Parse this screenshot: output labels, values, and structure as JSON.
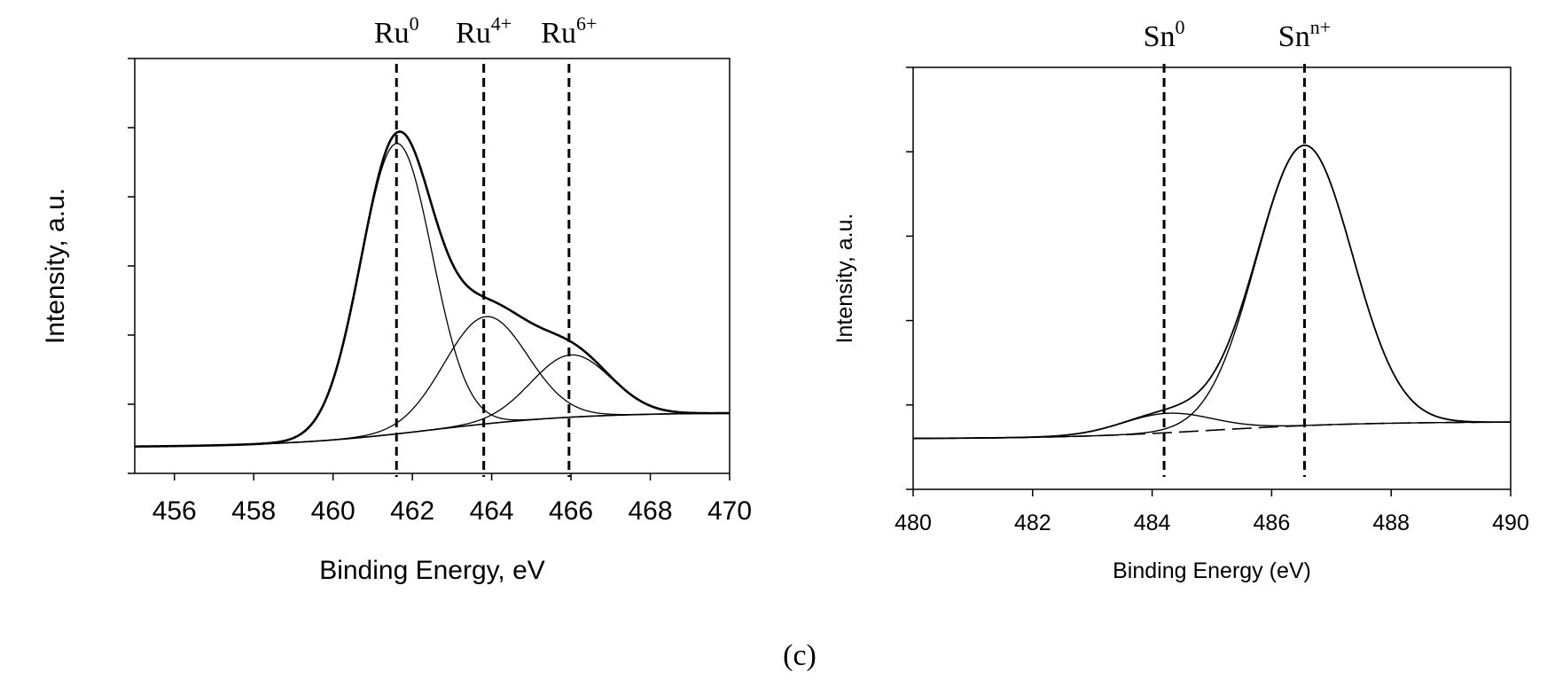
{
  "caption": "(c)",
  "chart_data": [
    {
      "type": "line",
      "xlabel": "Binding Energy, eV",
      "ylabel": "Intensity, a.u.",
      "xlim": [
        455,
        470
      ],
      "ylim": [
        0,
        6
      ],
      "xticks": [
        456,
        458,
        460,
        462,
        464,
        466,
        468,
        470
      ],
      "yticks": [
        0,
        1,
        2,
        3,
        4,
        5,
        6
      ],
      "show_y_tick_labels": false,
      "grid": false,
      "baseline": {
        "start": 0.38,
        "end": 0.88
      },
      "markers": [
        {
          "base": "Ru",
          "sup": "0",
          "x": 461.6
        },
        {
          "base": "Ru",
          "sup": "4+",
          "x": 463.8
        },
        {
          "base": "Ru",
          "sup": "6+",
          "x": 465.95
        }
      ],
      "peaks": [
        {
          "center": 461.6,
          "height": 4.2,
          "sigma": 0.9
        },
        {
          "center": 463.85,
          "height": 1.55,
          "sigma": 1.05
        },
        {
          "center": 466.0,
          "height": 0.9,
          "sigma": 1.0
        }
      ]
    },
    {
      "type": "line",
      "xlabel": "Binding Energy (eV)",
      "ylabel": "Intensity, a.u.",
      "xlim": [
        480,
        490
      ],
      "ylim": [
        0,
        5
      ],
      "xticks": [
        480,
        482,
        484,
        486,
        488,
        490
      ],
      "yticks": [
        0,
        1,
        2,
        3,
        4,
        5
      ],
      "show_y_tick_labels": false,
      "grid": false,
      "baseline": {
        "start": 0.6,
        "end": 0.8
      },
      "markers": [
        {
          "base": "Sn",
          "sup": "0",
          "x": 484.2
        },
        {
          "base": "Sn",
          "sup": "n+",
          "x": 486.55
        }
      ],
      "peaks": [
        {
          "center": 484.25,
          "height": 0.23,
          "sigma": 0.75
        },
        {
          "center": 486.55,
          "height": 3.32,
          "sigma": 0.8
        }
      ]
    }
  ]
}
